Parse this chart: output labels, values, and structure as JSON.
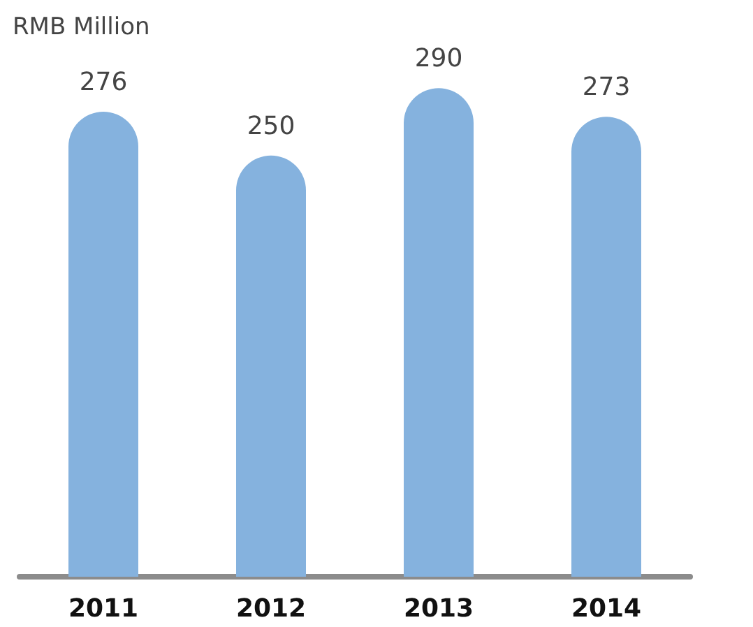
{
  "chart_data": {
    "type": "bar",
    "ylabel": "RMB Million",
    "categories": [
      "2011",
      "2012",
      "2013",
      "2014"
    ],
    "values": [
      276,
      250,
      290,
      273
    ],
    "color": "#85b2de",
    "data_labels": true
  }
}
